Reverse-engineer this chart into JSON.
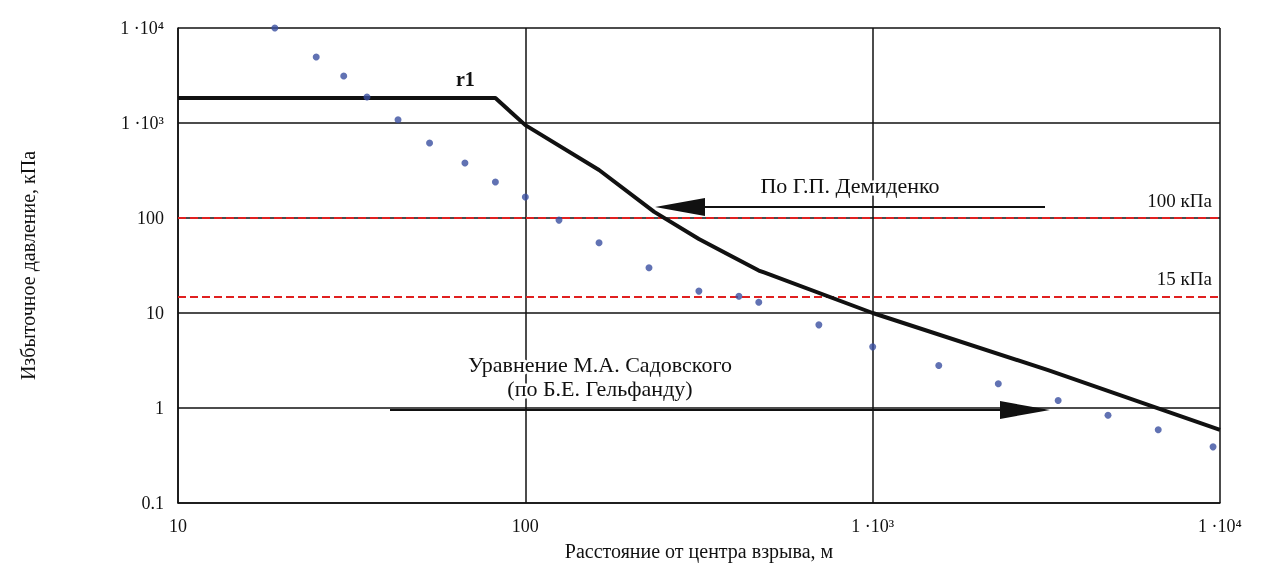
{
  "chart_data": {
    "type": "line",
    "xlabel": "Расстояние от центра взрыва, м",
    "ylabel": "Избыточное давление, кПа",
    "log": "xy",
    "grid": true,
    "xlim": [
      10,
      10000
    ],
    "xticks": [
      10,
      100,
      {
        "value": 1000,
        "label": "1 ·10³"
      },
      {
        "value": 10000,
        "label": "1 ·10⁴"
      }
    ],
    "ylim": [
      0.1,
      10000
    ],
    "yticks": [
      0.1,
      1,
      10,
      100,
      {
        "value": 1000,
        "label": "1 ·10³"
      },
      {
        "value": 10000,
        "label": "1 ·10⁴"
      }
    ],
    "series": [
      {
        "color": "#111111",
        "marker": "none",
        "line_style": "solid",
        "x": [
          10,
          82,
          100,
          163,
          235,
          316,
          470,
          1000,
          3200,
          10000
        ],
        "values": [
          1830,
          1830,
          950,
          320,
          116,
          60,
          28,
          10,
          2.5,
          0.59
        ]
      },
      {
        "type": "scatter",
        "color": "#3a4fa0",
        "marker": "circle",
        "x": [
          19,
          25,
          30,
          35,
          43,
          53,
          67,
          82,
          100,
          125,
          163,
          227,
          316,
          412,
          470,
          700,
          1000,
          1550,
          2300,
          3420,
          4760,
          6640,
          9550
        ],
        "values": [
          10000,
          4950,
          3130,
          1880,
          1080,
          615,
          379,
          239,
          166,
          95,
          55,
          30,
          17,
          15,
          13,
          7.5,
          4.4,
          2.8,
          1.8,
          1.2,
          0.84,
          0.59,
          0.39
        ]
      }
    ],
    "ref_lines": [
      {
        "axis": "y",
        "value": 100,
        "label": "100 кПа",
        "color": "#e02020",
        "line_style": "dashed"
      },
      {
        "axis": "y",
        "value": 15,
        "label": "15 кПа",
        "color": "#e02020",
        "line_style": "dashed"
      }
    ],
    "annotations": [
      {
        "text": "r1",
        "x": 82,
        "y": 1830
      },
      "По Г.П. Демиденко",
      "Уравнение М.А. Садовского\n(по Б.Е. Гельфанду)"
    ]
  }
}
